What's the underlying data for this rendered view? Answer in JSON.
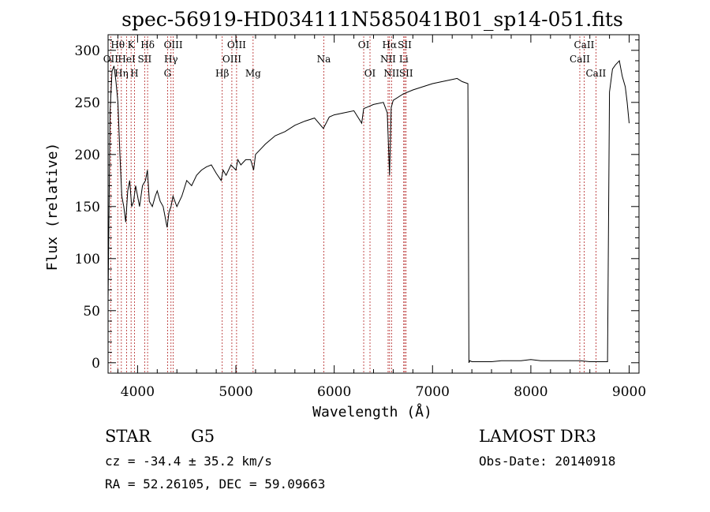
{
  "chart_data": {
    "type": "line",
    "title": "spec-56919-HD034111N585041B01_sp14-051.fits",
    "xlabel": "Wavelength (Å)",
    "ylabel": "Flux (relative)",
    "xlim": [
      3700,
      9100
    ],
    "ylim": [
      -10,
      315
    ],
    "xticks": [
      4000,
      5000,
      6000,
      7000,
      8000,
      9000
    ],
    "yticks": [
      0,
      50,
      100,
      150,
      200,
      250,
      300
    ],
    "grid": false,
    "series": [
      {
        "x": [
          3700,
          3720,
          3740,
          3760,
          3780,
          3800,
          3820,
          3840,
          3860,
          3880,
          3900,
          3920,
          3940,
          3960,
          3980,
          4000,
          4020,
          4050,
          4080,
          4100,
          4120,
          4150,
          4180,
          4200,
          4230,
          4260,
          4280,
          4300,
          4320,
          4340,
          4360,
          4380,
          4400,
          4450,
          4500,
          4550,
          4600,
          4650,
          4700,
          4750,
          4800,
          4850,
          4870,
          4900,
          4950,
          5000,
          5020,
          5050,
          5100,
          5150,
          5180,
          5200,
          5250,
          5300,
          5400,
          5500,
          5600,
          5700,
          5800,
          5890,
          5950,
          6000,
          6100,
          6200,
          6280,
          6300,
          6350,
          6400,
          6500,
          6540,
          6563,
          6580,
          6600,
          6700,
          6800,
          6900,
          7000,
          7100,
          7200,
          7250,
          7300,
          7360,
          7370,
          7380,
          7400,
          7500,
          7600,
          7700,
          7800,
          7900,
          8000,
          8100,
          8200,
          8300,
          8400,
          8500,
          8600,
          8700,
          8780,
          8800,
          8830,
          8860,
          8900,
          8930,
          8960,
          8980,
          9000
        ],
        "values": [
          60,
          240,
          280,
          285,
          270,
          250,
          200,
          160,
          150,
          135,
          165,
          175,
          150,
          155,
          170,
          160,
          150,
          170,
          175,
          185,
          155,
          150,
          160,
          165,
          155,
          150,
          140,
          130,
          145,
          150,
          160,
          155,
          150,
          160,
          175,
          170,
          180,
          185,
          188,
          190,
          182,
          175,
          185,
          180,
          190,
          185,
          195,
          190,
          195,
          195,
          185,
          200,
          205,
          210,
          218,
          222,
          228,
          232,
          235,
          225,
          236,
          238,
          240,
          242,
          230,
          244,
          246,
          248,
          250,
          240,
          180,
          245,
          252,
          258,
          262,
          265,
          268,
          270,
          272,
          273,
          270,
          268,
          0,
          2,
          1,
          1,
          1,
          2,
          2,
          2,
          3,
          2,
          2,
          2,
          2,
          2,
          1,
          1,
          1,
          260,
          282,
          286,
          290,
          275,
          265,
          250,
          230
        ]
      }
    ],
    "lines": [
      {
        "label": "OII",
        "x": 3727,
        "row": 1
      },
      {
        "label": "Hθ",
        "x": 3798,
        "row": 0
      },
      {
        "label": "Hη",
        "x": 3835,
        "row": 2
      },
      {
        "label": "HeI",
        "x": 3889,
        "row": 1
      },
      {
        "label": "K",
        "x": 3934,
        "row": 0
      },
      {
        "label": "H",
        "x": 3968,
        "row": 2
      },
      {
        "label": "SII",
        "x": 4072,
        "row": 1
      },
      {
        "label": "Hδ",
        "x": 4102,
        "row": 0
      },
      {
        "label": "G",
        "x": 4305,
        "row": 2
      },
      {
        "label": "Hγ",
        "x": 4340,
        "row": 1
      },
      {
        "label": "OIII",
        "x": 4363,
        "row": 0
      },
      {
        "label": "Hβ",
        "x": 4861,
        "row": 2
      },
      {
        "label": "OIII",
        "x": 4959,
        "row": 1
      },
      {
        "label": "OIII",
        "x": 5007,
        "row": 0
      },
      {
        "label": "Mg",
        "x": 5175,
        "row": 2
      },
      {
        "label": "Na",
        "x": 5894,
        "row": 1
      },
      {
        "label": "OI",
        "x": 6300,
        "row": 0
      },
      {
        "label": "OI",
        "x": 6364,
        "row": 2
      },
      {
        "label": "NII",
        "x": 6548,
        "row": 1
      },
      {
        "label": "Hα",
        "x": 6563,
        "row": 0
      },
      {
        "label": "NII",
        "x": 6583,
        "row": 2
      },
      {
        "label": "Li",
        "x": 6707,
        "row": 1
      },
      {
        "label": "SII",
        "x": 6717,
        "row": 0
      },
      {
        "label": "SII",
        "x": 6731,
        "row": 2
      },
      {
        "label": "CaII",
        "x": 8498,
        "row": 1
      },
      {
        "label": "CaII",
        "x": 8542,
        "row": 0
      },
      {
        "label": "CaII",
        "x": 8662,
        "row": 2
      }
    ]
  },
  "info": {
    "object_class": "STAR",
    "subclass": "G5",
    "survey": "LAMOST DR3",
    "redshift": "cz = -34.4 ± 35.2 km/s",
    "obs_date": "Obs-Date: 20140918",
    "coords": "RA =  52.26105, DEC =  59.09663"
  },
  "colors": {
    "spectrum": "#000000",
    "line_markers": "#b22222"
  }
}
